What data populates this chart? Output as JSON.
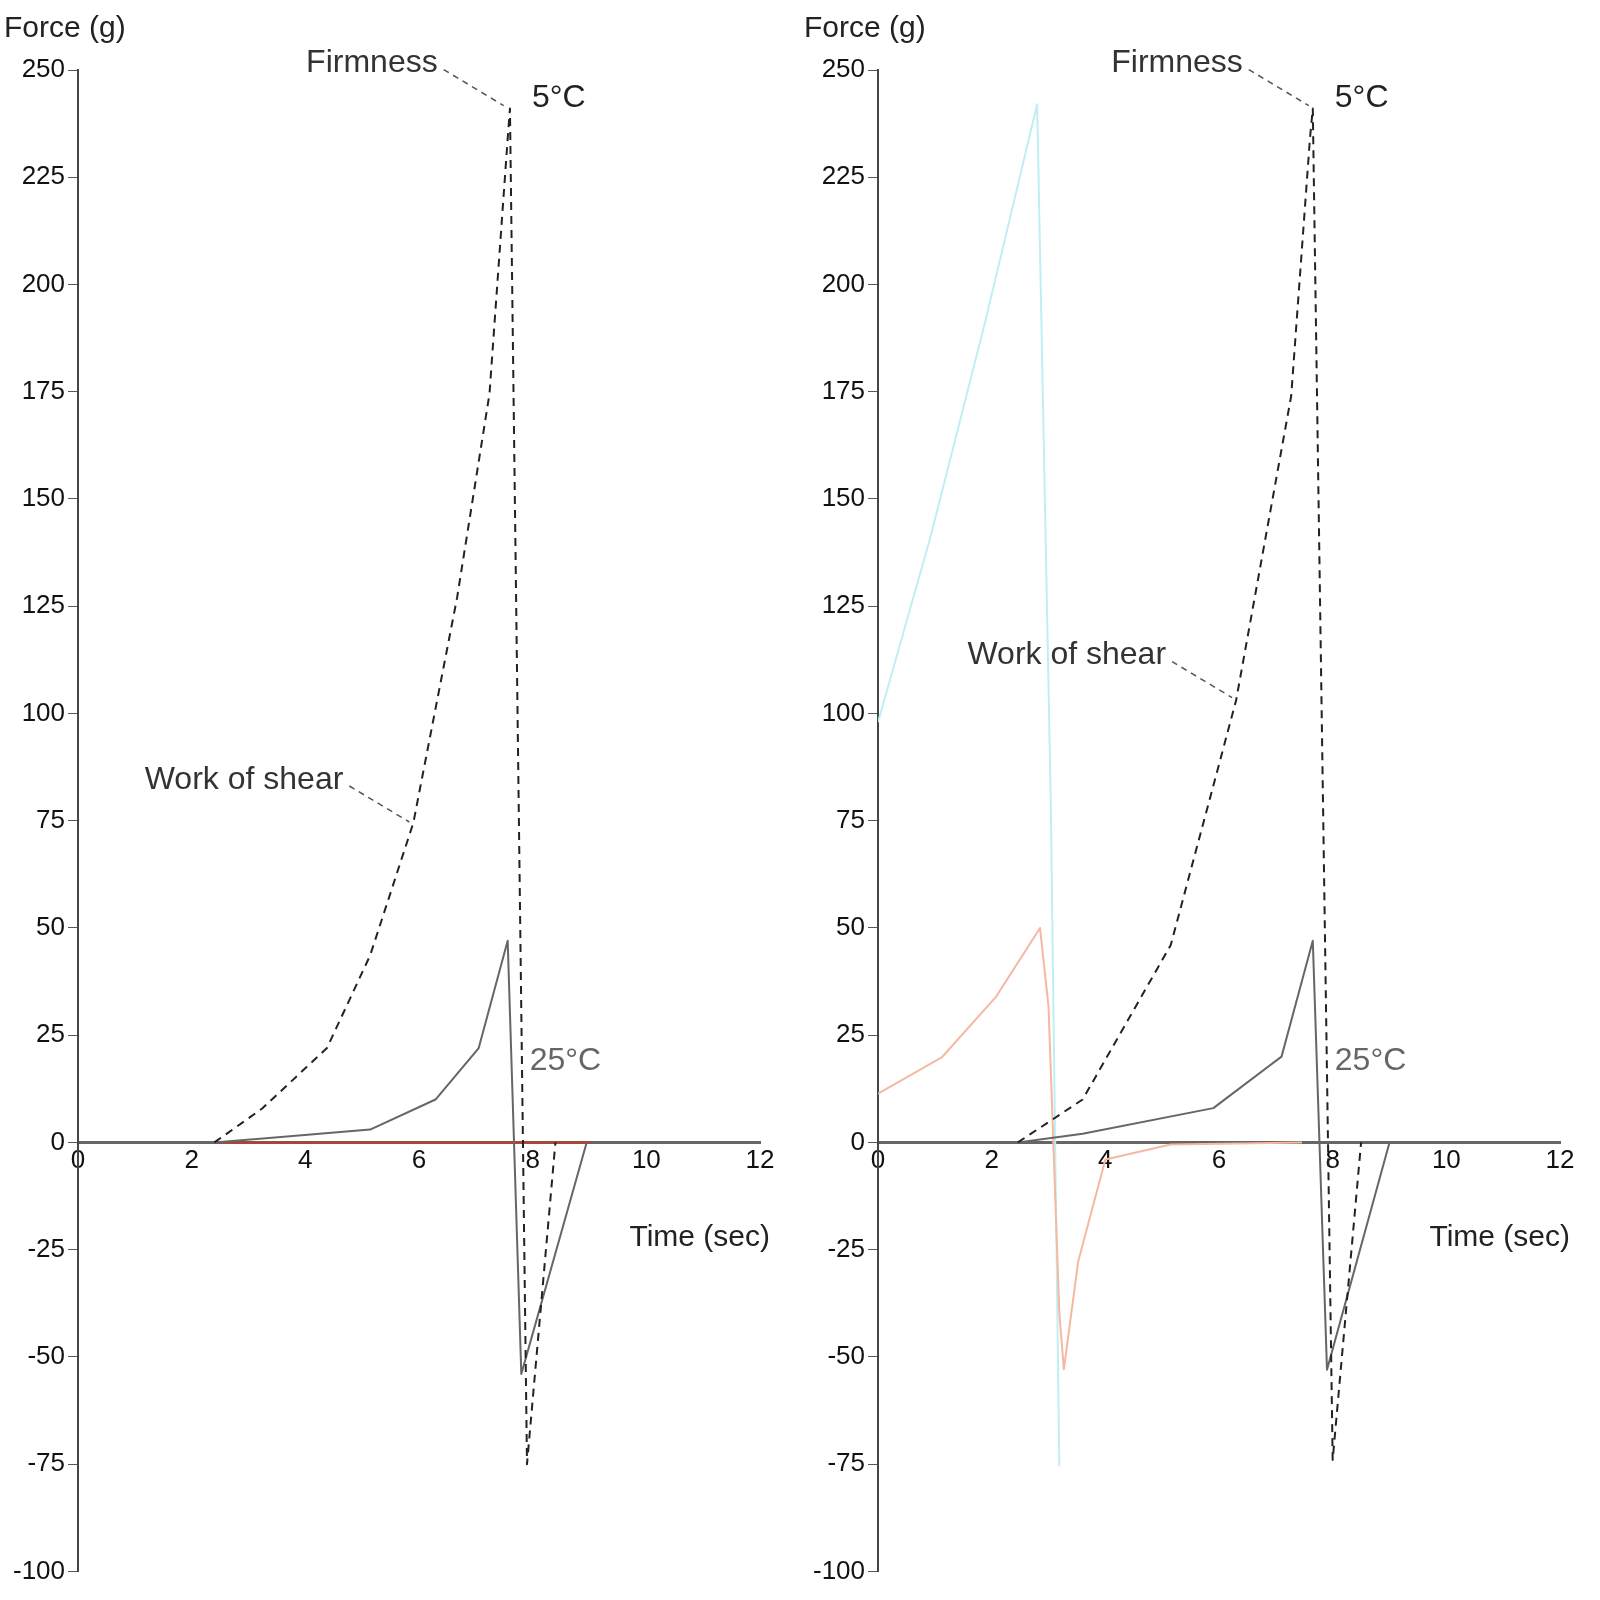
{
  "chart_data": [
    {
      "type": "line",
      "xlabel": "Time (sec)",
      "ylabel": "Force (g)",
      "xlim": [
        0,
        12
      ],
      "xticks": [
        0,
        2,
        4,
        6,
        8,
        10,
        12
      ],
      "ylim": [
        -100,
        250
      ],
      "yticks": [
        -100,
        -75,
        -50,
        -25,
        0,
        25,
        50,
        75,
        100,
        125,
        150,
        175,
        200,
        225,
        250
      ],
      "grid": false,
      "legend": false,
      "marker": "none",
      "annotations": [
        {
          "text": "Firmness",
          "x": 7.56,
          "y": 241
        },
        {
          "text": "Work of shear",
          "x": 5.9,
          "y": 74
        }
      ],
      "series": [
        {
          "name": "5°C",
          "color": "#222222",
          "line_style": "dashed",
          "x": [
            2.4,
            3.24,
            4.38,
            5.14,
            5.9,
            6.67,
            7.24,
            7.56,
            7.6,
            7.9,
            8.4
          ],
          "values": [
            0,
            7.9,
            22,
            43.6,
            74.5,
            127,
            174.5,
            234,
            241,
            -75,
            0
          ]
        },
        {
          "name": "25°C",
          "color": "#666666",
          "line_style": "solid",
          "x": [
            2.4,
            5.14,
            6.29,
            7.05,
            7.56,
            7.8,
            8.95
          ],
          "values": [
            0,
            3,
            10,
            22,
            47,
            -54,
            0
          ]
        },
        {
          "color": "#c0392b",
          "line_style": "solid",
          "x": [
            2.4,
            9
          ],
          "values": [
            0,
            0
          ]
        }
      ]
    },
    {
      "type": "line",
      "xlabel": "Time (sec)",
      "ylabel": "Force (g)",
      "xlim": [
        0,
        12
      ],
      "xticks": [
        0,
        2,
        4,
        6,
        8,
        10,
        12
      ],
      "ylim": [
        -100,
        250
      ],
      "yticks": [
        -100,
        -75,
        -50,
        -25,
        0,
        25,
        50,
        75,
        100,
        125,
        150,
        175,
        200,
        225,
        250
      ],
      "grid": false,
      "legend": false,
      "marker": "none",
      "annotations": [
        {
          "text": "Firmness",
          "x": 7.65,
          "y": 241
        },
        {
          "text": "Work of shear",
          "x": 6.3,
          "y": 103
        }
      ],
      "series": [
        {
          "name": "5°C",
          "color": "#222222",
          "line_style": "dashed",
          "x": [
            2.46,
            3.6,
            5.15,
            6.3,
            7.27,
            7.6,
            7.65,
            8.0,
            8.5
          ],
          "values": [
            0,
            10,
            46,
            103,
            174,
            234,
            241,
            -74,
            0
          ]
        },
        {
          "name": "25°C",
          "color": "#666666",
          "line_style": "solid",
          "x": [
            2.46,
            3.6,
            5.9,
            7.1,
            7.65,
            7.9,
            9
          ],
          "values": [
            0,
            2,
            8,
            20,
            47,
            -53,
            0
          ]
        },
        {
          "color": "#f4b9a0",
          "line_style": "solid",
          "x": [
            0,
            1.12,
            2.08,
            2.85,
            3.0,
            3.19,
            3.27,
            3.52,
            4.0,
            5.15,
            7.46
          ],
          "values": [
            11.4,
            19.8,
            34,
            50,
            31.7,
            -39.8,
            -52.9,
            -27.9,
            -4,
            -0.5,
            0
          ]
        },
        {
          "color": "#bfeff5",
          "line_style": "solid",
          "x": [
            0,
            0.92,
            1.88,
            2.8,
            3.04,
            3.19
          ],
          "values": [
            98,
            141,
            191,
            242,
            79,
            -75.5
          ]
        }
      ]
    }
  ]
}
